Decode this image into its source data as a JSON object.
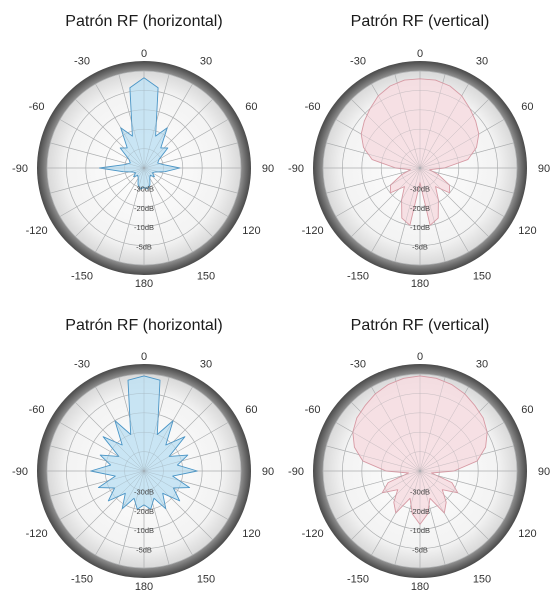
{
  "chart_data": [
    {
      "type": "polar",
      "title": "Patrón RF (horizontal)",
      "angle_labels": [
        "0",
        "30",
        "60",
        "90",
        "120",
        "150",
        "180",
        "-150",
        "-120",
        "-90",
        "-60",
        "-30"
      ],
      "ring_labels": [
        "-30dB",
        "-20dB",
        "-10dB",
        "-5dB"
      ],
      "fill": "#bfe0f2",
      "stroke": "#4a95c6",
      "series": [
        {
          "angles": [
            0,
            10,
            20,
            30,
            40,
            50,
            60,
            70,
            80,
            90,
            100,
            110,
            120,
            130,
            140,
            150,
            160,
            170,
            180,
            190,
            200,
            210,
            220,
            230,
            240,
            250,
            260,
            270,
            280,
            290,
            300,
            310,
            320,
            330,
            340,
            350
          ],
          "values": [
            0.93,
            0.84,
            0.35,
            0.48,
            0.27,
            0.32,
            0.18,
            0.15,
            0.2,
            0.37,
            0.22,
            0.12,
            0.1,
            0.14,
            0.1,
            0.12,
            0.18,
            0.22,
            0.2,
            0.22,
            0.18,
            0.12,
            0.1,
            0.14,
            0.1,
            0.12,
            0.22,
            0.46,
            0.2,
            0.15,
            0.18,
            0.32,
            0.27,
            0.48,
            0.35,
            0.84
          ]
        }
      ]
    },
    {
      "type": "polar",
      "title": "Patrón RF (vertical)",
      "angle_labels": [
        "0",
        "30",
        "60",
        "90",
        "120",
        "150",
        "180",
        "-150",
        "-120",
        "-90",
        "-60",
        "-30"
      ],
      "ring_labels": [
        "-30dB",
        "-20dB",
        "-10dB",
        "-5dB"
      ],
      "fill": "#f6dce1",
      "stroke": "#d79aa4",
      "series": [
        {
          "angles": [
            0,
            10,
            20,
            30,
            40,
            50,
            60,
            70,
            80,
            90,
            100,
            110,
            120,
            130,
            140,
            150,
            160,
            170,
            180,
            190,
            200,
            210,
            220,
            230,
            240,
            250,
            260,
            270,
            280,
            290,
            300,
            310,
            320,
            330,
            340,
            350
          ],
          "values": [
            0.92,
            0.92,
            0.9,
            0.86,
            0.8,
            0.75,
            0.7,
            0.62,
            0.5,
            0.25,
            0.1,
            0.2,
            0.35,
            0.4,
            0.25,
            0.38,
            0.55,
            0.6,
            0.15,
            0.6,
            0.55,
            0.38,
            0.25,
            0.4,
            0.35,
            0.2,
            0.1,
            0.25,
            0.5,
            0.62,
            0.7,
            0.75,
            0.8,
            0.86,
            0.9,
            0.92
          ]
        }
      ]
    },
    {
      "type": "polar",
      "title": "Patrón RF (horizontal)",
      "angle_labels": [
        "0",
        "30",
        "60",
        "90",
        "120",
        "150",
        "180",
        "-150",
        "-120",
        "-90",
        "-60",
        "-30"
      ],
      "ring_labels": [
        "-30dB",
        "-20dB",
        "-10dB",
        "-5dB"
      ],
      "fill": "#bfe0f2",
      "stroke": "#4a95c6",
      "series": [
        {
          "angles": [
            0,
            10,
            20,
            30,
            40,
            50,
            60,
            70,
            80,
            90,
            100,
            110,
            120,
            130,
            140,
            150,
            160,
            170,
            180,
            190,
            200,
            210,
            220,
            230,
            240,
            250,
            260,
            270,
            280,
            290,
            300,
            310,
            320,
            330,
            340,
            350
          ],
          "values": [
            0.98,
            0.95,
            0.4,
            0.6,
            0.35,
            0.55,
            0.3,
            0.48,
            0.35,
            0.55,
            0.3,
            0.5,
            0.35,
            0.48,
            0.3,
            0.45,
            0.3,
            0.4,
            0.35,
            0.4,
            0.3,
            0.45,
            0.3,
            0.48,
            0.35,
            0.5,
            0.3,
            0.55,
            0.35,
            0.48,
            0.3,
            0.55,
            0.35,
            0.6,
            0.4,
            0.95
          ]
        }
      ]
    },
    {
      "type": "polar",
      "title": "Patrón RF (vertical)",
      "angle_labels": [
        "0",
        "30",
        "60",
        "90",
        "120",
        "150",
        "180",
        "-150",
        "-120",
        "-90",
        "-60",
        "-30"
      ],
      "ring_labels": [
        "-30dB",
        "-20dB",
        "-10dB",
        "-5dB"
      ],
      "fill": "#f6dce1",
      "stroke": "#d79aa4",
      "series": [
        {
          "angles": [
            0,
            10,
            20,
            30,
            40,
            50,
            60,
            70,
            80,
            90,
            100,
            110,
            120,
            130,
            140,
            150,
            160,
            170,
            180,
            190,
            200,
            210,
            220,
            230,
            240,
            250,
            260,
            270,
            280,
            290,
            300,
            310,
            320,
            330,
            340,
            350
          ],
          "values": [
            0.98,
            0.97,
            0.95,
            0.92,
            0.88,
            0.85,
            0.8,
            0.72,
            0.6,
            0.35,
            0.12,
            0.35,
            0.45,
            0.3,
            0.42,
            0.5,
            0.3,
            0.45,
            0.55,
            0.45,
            0.3,
            0.5,
            0.42,
            0.3,
            0.45,
            0.35,
            0.12,
            0.35,
            0.6,
            0.72,
            0.8,
            0.85,
            0.88,
            0.92,
            0.95,
            0.97
          ]
        }
      ]
    }
  ]
}
